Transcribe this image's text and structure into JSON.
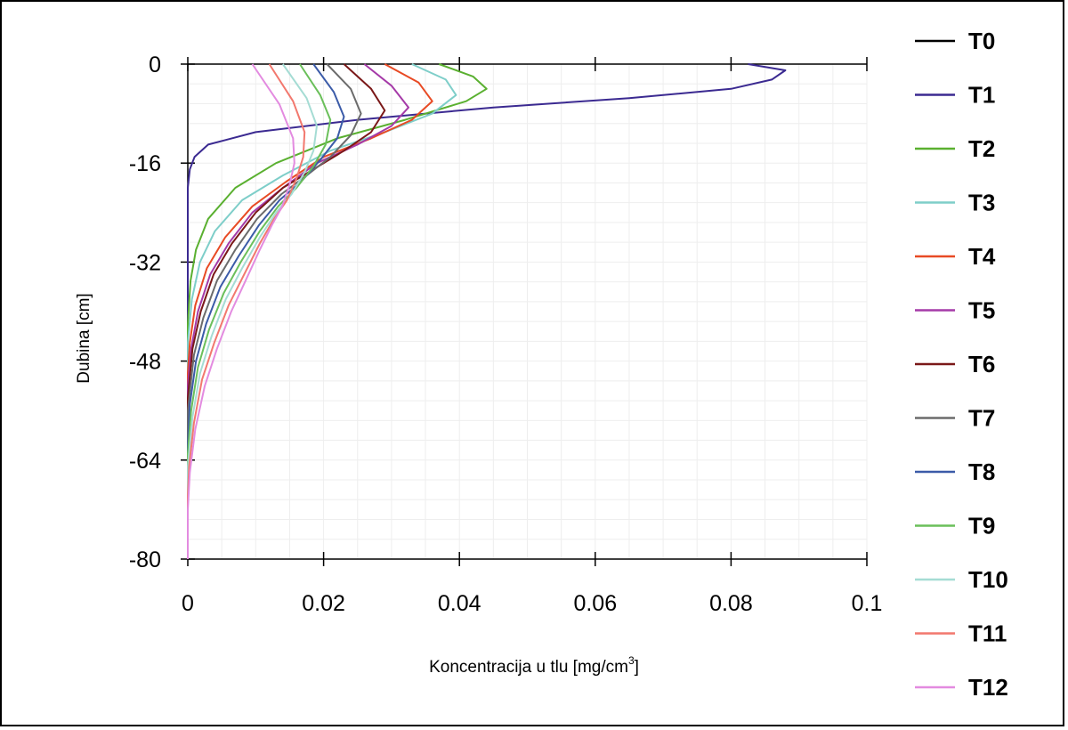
{
  "chart_data": {
    "type": "line",
    "title": "",
    "xlabel": "Koncentracija u tlu [mg/cm",
    "xlabel_superscript": "3",
    "xlabel_suffix": "]",
    "ylabel": "Dubina [cm]",
    "xlim": [
      0,
      0.1
    ],
    "ylim": [
      -80,
      0
    ],
    "x_ticks": [
      "0",
      "0.02",
      "0.04",
      "0.06",
      "0.08",
      "0.1"
    ],
    "y_ticks": [
      "0",
      "-16",
      "-32",
      "-48",
      "-64",
      "-80"
    ],
    "grid": true,
    "legend_position": "right",
    "series": [
      {
        "name": "T0",
        "color": "#000000",
        "points": [
          [
            0,
            0
          ]
        ]
      },
      {
        "name": "T1",
        "color": "#3b2a91",
        "points": [
          [
            0.0825,
            0
          ],
          [
            0.088,
            -1
          ],
          [
            0.086,
            -2.5
          ],
          [
            0.08,
            -4
          ],
          [
            0.065,
            -5.5
          ],
          [
            0.045,
            -7
          ],
          [
            0.025,
            -9
          ],
          [
            0.01,
            -11
          ],
          [
            0.003,
            -13
          ],
          [
            0.001,
            -15
          ],
          [
            0.0003,
            -17
          ],
          [
            0,
            -20
          ],
          [
            0,
            -80
          ]
        ]
      },
      {
        "name": "T2",
        "color": "#5ab030",
        "points": [
          [
            0.037,
            0
          ],
          [
            0.042,
            -2
          ],
          [
            0.044,
            -4
          ],
          [
            0.041,
            -6
          ],
          [
            0.032,
            -9
          ],
          [
            0.022,
            -12
          ],
          [
            0.013,
            -16
          ],
          [
            0.007,
            -20
          ],
          [
            0.003,
            -25
          ],
          [
            0.0012,
            -30
          ],
          [
            0.0004,
            -35
          ],
          [
            0,
            -42
          ],
          [
            0,
            -80
          ]
        ]
      },
      {
        "name": "T3",
        "color": "#7ecec9",
        "points": [
          [
            0.033,
            0
          ],
          [
            0.038,
            -2.5
          ],
          [
            0.0395,
            -5
          ],
          [
            0.036,
            -8
          ],
          [
            0.029,
            -11
          ],
          [
            0.021,
            -14
          ],
          [
            0.014,
            -18
          ],
          [
            0.008,
            -22
          ],
          [
            0.004,
            -27
          ],
          [
            0.0018,
            -32
          ],
          [
            0.0006,
            -38
          ],
          [
            0,
            -45
          ],
          [
            0,
            -80
          ]
        ]
      },
      {
        "name": "T4",
        "color": "#e84a24",
        "points": [
          [
            0.029,
            0
          ],
          [
            0.034,
            -3
          ],
          [
            0.036,
            -6
          ],
          [
            0.033,
            -9
          ],
          [
            0.027,
            -12
          ],
          [
            0.02,
            -15
          ],
          [
            0.0145,
            -19
          ],
          [
            0.0095,
            -23
          ],
          [
            0.0055,
            -28
          ],
          [
            0.0028,
            -33
          ],
          [
            0.0011,
            -39
          ],
          [
            0.0003,
            -45
          ],
          [
            0,
            -50
          ],
          [
            0,
            -80
          ]
        ]
      },
      {
        "name": "T5",
        "color": "#a53aa8",
        "points": [
          [
            0.026,
            0
          ],
          [
            0.03,
            -3.5
          ],
          [
            0.0325,
            -7
          ],
          [
            0.03,
            -10
          ],
          [
            0.025,
            -13
          ],
          [
            0.019,
            -16
          ],
          [
            0.014,
            -20
          ],
          [
            0.0095,
            -24
          ],
          [
            0.006,
            -29
          ],
          [
            0.0033,
            -34
          ],
          [
            0.0015,
            -40
          ],
          [
            0.0005,
            -46
          ],
          [
            0,
            -52
          ],
          [
            0,
            -80
          ]
        ]
      },
      {
        "name": "T6",
        "color": "#7a1818",
        "points": [
          [
            0.023,
            0
          ],
          [
            0.027,
            -4
          ],
          [
            0.029,
            -7.5
          ],
          [
            0.027,
            -11
          ],
          [
            0.023,
            -14
          ],
          [
            0.0185,
            -17
          ],
          [
            0.014,
            -20
          ],
          [
            0.01,
            -24
          ],
          [
            0.0065,
            -29
          ],
          [
            0.0038,
            -34
          ],
          [
            0.0019,
            -40
          ],
          [
            0.0007,
            -46
          ],
          [
            0,
            -54
          ],
          [
            0,
            -80
          ]
        ]
      },
      {
        "name": "T7",
        "color": "#6b6b6b",
        "points": [
          [
            0.0205,
            0
          ],
          [
            0.024,
            -4
          ],
          [
            0.0255,
            -8
          ],
          [
            0.024,
            -11.5
          ],
          [
            0.021,
            -15
          ],
          [
            0.0175,
            -18
          ],
          [
            0.0138,
            -21
          ],
          [
            0.0102,
            -25
          ],
          [
            0.007,
            -30
          ],
          [
            0.0043,
            -35
          ],
          [
            0.0023,
            -41
          ],
          [
            0.0009,
            -47
          ],
          [
            0,
            -56
          ],
          [
            0,
            -80
          ]
        ]
      },
      {
        "name": "T8",
        "color": "#3b5ba8",
        "points": [
          [
            0.0185,
            0
          ],
          [
            0.0215,
            -4.5
          ],
          [
            0.023,
            -8.5
          ],
          [
            0.022,
            -12
          ],
          [
            0.0195,
            -15.5
          ],
          [
            0.0167,
            -19
          ],
          [
            0.0135,
            -22
          ],
          [
            0.0105,
            -26
          ],
          [
            0.0075,
            -31
          ],
          [
            0.0048,
            -36
          ],
          [
            0.0027,
            -42
          ],
          [
            0.0012,
            -48
          ],
          [
            0.0003,
            -55
          ],
          [
            0,
            -62
          ],
          [
            0,
            -80
          ]
        ]
      },
      {
        "name": "T9",
        "color": "#6abf5a",
        "points": [
          [
            0.0165,
            0
          ],
          [
            0.0195,
            -5
          ],
          [
            0.021,
            -9
          ],
          [
            0.0203,
            -13
          ],
          [
            0.0185,
            -16.5
          ],
          [
            0.016,
            -20
          ],
          [
            0.0133,
            -23
          ],
          [
            0.0106,
            -27
          ],
          [
            0.0078,
            -32
          ],
          [
            0.0053,
            -37
          ],
          [
            0.0031,
            -43
          ],
          [
            0.0015,
            -49
          ],
          [
            0.0005,
            -56
          ],
          [
            0,
            -63
          ],
          [
            0,
            -80
          ]
        ]
      },
      {
        "name": "T10",
        "color": "#a5dcd4",
        "points": [
          [
            0.014,
            0
          ],
          [
            0.0175,
            -5.5
          ],
          [
            0.019,
            -10
          ],
          [
            0.0185,
            -14
          ],
          [
            0.0172,
            -17.5
          ],
          [
            0.0153,
            -21
          ],
          [
            0.013,
            -24
          ],
          [
            0.0106,
            -28
          ],
          [
            0.008,
            -33
          ],
          [
            0.0056,
            -38
          ],
          [
            0.0035,
            -44
          ],
          [
            0.0018,
            -50
          ],
          [
            0.0007,
            -57
          ],
          [
            0,
            -65
          ],
          [
            0,
            -80
          ]
        ]
      },
      {
        "name": "T11",
        "color": "#f2786e",
        "points": [
          [
            0.012,
            0
          ],
          [
            0.0155,
            -6
          ],
          [
            0.0172,
            -11
          ],
          [
            0.017,
            -15
          ],
          [
            0.016,
            -18.5
          ],
          [
            0.0146,
            -22
          ],
          [
            0.0127,
            -25
          ],
          [
            0.0106,
            -29
          ],
          [
            0.0083,
            -34
          ],
          [
            0.006,
            -39
          ],
          [
            0.0039,
            -45
          ],
          [
            0.0021,
            -51
          ],
          [
            0.0009,
            -58
          ],
          [
            0.0002,
            -65
          ],
          [
            0,
            -70
          ],
          [
            0,
            -80
          ]
        ]
      },
      {
        "name": "T12",
        "color": "#e38be0",
        "points": [
          [
            0.0095,
            0
          ],
          [
            0.0135,
            -6.5
          ],
          [
            0.0155,
            -12
          ],
          [
            0.0157,
            -16
          ],
          [
            0.015,
            -19.5
          ],
          [
            0.0139,
            -23
          ],
          [
            0.0124,
            -26
          ],
          [
            0.0106,
            -30
          ],
          [
            0.0085,
            -35
          ],
          [
            0.0064,
            -40
          ],
          [
            0.0043,
            -46
          ],
          [
            0.0025,
            -52
          ],
          [
            0.0011,
            -59
          ],
          [
            0.0003,
            -66
          ],
          [
            0,
            -72
          ],
          [
            0,
            -80
          ]
        ]
      }
    ]
  }
}
